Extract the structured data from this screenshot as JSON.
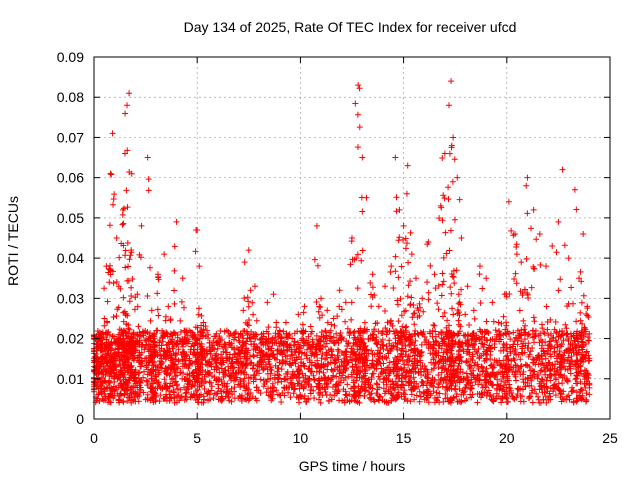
{
  "chart_data": {
    "type": "scatter",
    "title": "Day 134 of 2025, Rate Of TEC Index for receiver ufcd",
    "xlabel": "GPS time / hours",
    "ylabel": "ROTI / TECUs",
    "xlim": [
      0,
      25
    ],
    "ylim": [
      0,
      0.09
    ],
    "xticks": [
      0,
      5,
      10,
      15,
      20,
      25
    ],
    "xtick_labels": [
      "0",
      "5",
      "10",
      "15",
      "20",
      "25"
    ],
    "yticks": [
      0,
      0.01,
      0.02,
      0.03,
      0.04,
      0.05,
      0.06,
      0.07,
      0.08,
      0.09
    ],
    "ytick_labels": [
      "0",
      "0.01",
      "0.02",
      "0.03",
      "0.04",
      "0.05",
      "0.06",
      "0.07",
      "0.08",
      "0.09"
    ],
    "grid": true,
    "marker": "+",
    "series": [
      {
        "name": "ROTI",
        "color": "#ff0000",
        "x": [
          0.0,
          0.2,
          0.3,
          0.5,
          0.6,
          0.8,
          0.9,
          1.1,
          1.2,
          1.4,
          1.5,
          1.6,
          1.7,
          1.8,
          1.9,
          2.1,
          2.3,
          2.6,
          2.8,
          2.9,
          3.1,
          3.4,
          3.6,
          3.8,
          4.0,
          4.3,
          4.5,
          4.8,
          5.0,
          5.1,
          5.3,
          5.6,
          5.9,
          6.2,
          6.5,
          6.8,
          7.1,
          7.3,
          7.5,
          7.8,
          8.1,
          8.4,
          8.7,
          9.0,
          9.3,
          9.6,
          9.9,
          10.2,
          10.5,
          10.8,
          11.0,
          11.3,
          11.6,
          11.9,
          12.2,
          12.5,
          12.7,
          12.8,
          13.0,
          13.2,
          13.5,
          13.8,
          14.1,
          14.4,
          14.6,
          14.8,
          15.0,
          15.2,
          15.4,
          15.6,
          15.9,
          16.2,
          16.5,
          16.8,
          17.0,
          17.2,
          17.3,
          17.4,
          17.6,
          17.8,
          18.1,
          18.4,
          18.7,
          19.0,
          19.3,
          19.6,
          19.9,
          20.1,
          20.4,
          20.7,
          21.0,
          21.3,
          21.6,
          21.9,
          22.2,
          22.5,
          22.7,
          23.0,
          23.3,
          23.5,
          23.7,
          23.9
        ],
        "y": [
          0.012,
          0.018,
          0.009,
          0.025,
          0.038,
          0.061,
          0.071,
          0.045,
          0.033,
          0.052,
          0.066,
          0.078,
          0.081,
          0.042,
          0.021,
          0.031,
          0.048,
          0.065,
          0.027,
          0.019,
          0.036,
          0.041,
          0.028,
          0.014,
          0.049,
          0.035,
          0.022,
          0.016,
          0.047,
          0.038,
          0.024,
          0.019,
          0.015,
          0.018,
          0.013,
          0.016,
          0.021,
          0.039,
          0.042,
          0.033,
          0.017,
          0.029,
          0.031,
          0.022,
          0.024,
          0.02,
          0.026,
          0.028,
          0.023,
          0.048,
          0.03,
          0.027,
          0.025,
          0.032,
          0.029,
          0.045,
          0.04,
          0.083,
          0.065,
          0.055,
          0.036,
          0.028,
          0.033,
          0.038,
          0.065,
          0.052,
          0.048,
          0.063,
          0.041,
          0.035,
          0.03,
          0.044,
          0.036,
          0.053,
          0.066,
          0.078,
          0.084,
          0.07,
          0.06,
          0.045,
          0.033,
          0.027,
          0.038,
          0.035,
          0.029,
          0.024,
          0.031,
          0.054,
          0.046,
          0.039,
          0.06,
          0.052,
          0.046,
          0.038,
          0.043,
          0.049,
          0.062,
          0.04,
          0.057,
          0.035,
          0.046,
          0.028
        ]
      }
    ]
  }
}
